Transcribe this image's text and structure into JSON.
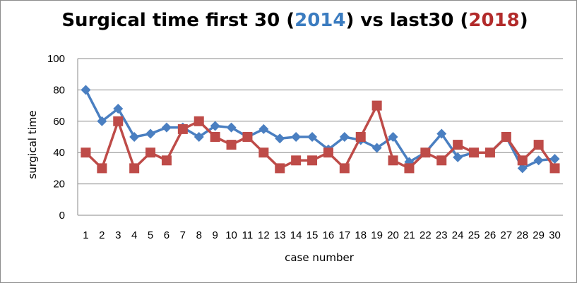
{
  "colors": {
    "series_2014": "#4a7fc1",
    "series_2018": "#be4b48",
    "title_2014": "#3b7cc0",
    "title_2018": "#b22b2b",
    "grid": "#8a8a8a"
  },
  "title": {
    "prefix": "Surgical time first 30 (",
    "year1": "2014",
    "middle": ") vs last30 (",
    "year2": "2018",
    "suffix": ")"
  },
  "chart_data": {
    "type": "line",
    "title": "Surgical time first 30 (2014) vs last30 (2018)",
    "xlabel": "case number",
    "ylabel": "surgical time",
    "ylim": [
      0,
      100
    ],
    "yticks": [
      0,
      20,
      40,
      60,
      80,
      100
    ],
    "grid": "horizontal",
    "legend": "none",
    "categories": [
      "1",
      "2",
      "3",
      "4",
      "5",
      "6",
      "7",
      "8",
      "9",
      "10",
      "11",
      "12",
      "13",
      "14",
      "15",
      "16",
      "17",
      "18",
      "19",
      "20",
      "21",
      "22",
      "23",
      "24",
      "25",
      "26",
      "27",
      "28",
      "29",
      "30"
    ],
    "series": [
      {
        "color": "#4a7fc1",
        "marker": "diamond",
        "values": [
          80,
          60,
          68,
          50,
          52,
          56,
          56,
          50,
          57,
          56,
          50,
          55,
          49,
          50,
          50,
          42,
          50,
          48,
          43,
          50,
          34,
          40,
          52,
          37,
          40,
          40,
          50,
          30,
          35,
          36
        ]
      },
      {
        "color": "#be4b48",
        "marker": "square",
        "values": [
          40,
          30,
          60,
          30,
          40,
          35,
          55,
          60,
          50,
          45,
          50,
          40,
          30,
          35,
          35,
          40,
          30,
          50,
          70,
          35,
          30,
          40,
          35,
          45,
          40,
          40,
          50,
          35,
          45,
          30
        ]
      }
    ]
  }
}
